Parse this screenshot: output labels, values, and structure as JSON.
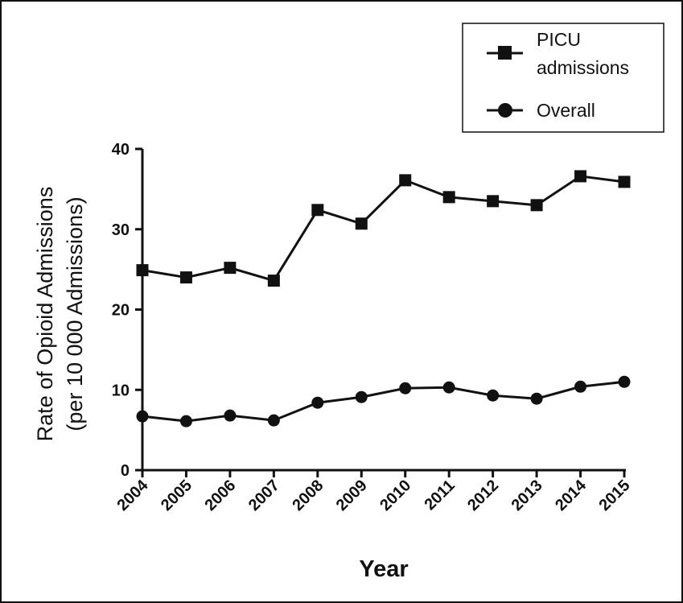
{
  "chart_data": {
    "type": "line",
    "title": "",
    "xlabel": "Year",
    "ylabel_lines": [
      "Rate of Opioid Admissions",
      "(per 10 000 Admissions)"
    ],
    "categories": [
      "2004",
      "2005",
      "2006",
      "2007",
      "2008",
      "2009",
      "2010",
      "2011",
      "2012",
      "2013",
      "2014",
      "2015"
    ],
    "ylim": [
      0,
      40
    ],
    "yticks": [
      0,
      10,
      20,
      30,
      40
    ],
    "grid": false,
    "legend_position": "top-right",
    "series": [
      {
        "name_lines": [
          "PICU",
          "admissions"
        ],
        "marker": "square",
        "color": "#111111",
        "values": [
          24.9,
          24.0,
          25.2,
          23.6,
          32.4,
          30.7,
          36.1,
          34.0,
          33.5,
          33.0,
          36.6,
          35.9
        ]
      },
      {
        "name_lines": [
          "Overall"
        ],
        "marker": "circle",
        "color": "#111111",
        "values": [
          6.7,
          6.1,
          6.8,
          6.2,
          8.4,
          9.1,
          10.2,
          10.3,
          9.3,
          8.9,
          10.4,
          11.0
        ]
      }
    ]
  }
}
